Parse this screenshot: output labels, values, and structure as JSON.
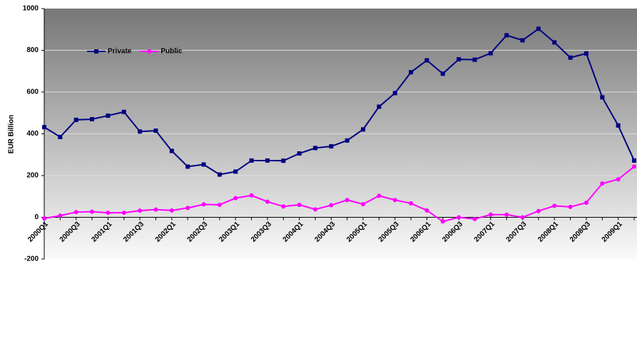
{
  "chart_data": {
    "type": "line",
    "y_label": "EUR Billion",
    "categories": [
      "2000Q1",
      null,
      "2000Q3",
      null,
      "2001Q1",
      null,
      "2001Q3",
      null,
      "2002Q1",
      null,
      "2002Q3",
      null,
      "2003Q1",
      null,
      "2003Q3",
      null,
      "2004Q1",
      null,
      "2004Q3",
      null,
      "2005Q1",
      null,
      "2005Q3",
      null,
      "2006Q1",
      null,
      "2006Q3",
      null,
      "2007Q1",
      null,
      "2007Q3",
      null,
      "2008Q1",
      null,
      "2008Q3",
      null,
      "2009Q1",
      null
    ],
    "series": [
      {
        "name": "Private",
        "color": "#000080",
        "marker": "square",
        "values": [
          432,
          385,
          467,
          470,
          487,
          505,
          411,
          415,
          318,
          243,
          253,
          205,
          219,
          272,
          272,
          271,
          306,
          332,
          340,
          368,
          421,
          530,
          595,
          695,
          752,
          688,
          757,
          755,
          786,
          872,
          848,
          903,
          838,
          765,
          785,
          575,
          440,
          272
        ]
      },
      {
        "name": "Public",
        "color": "#ff00ff",
        "marker": "circle",
        "values": [
          -5,
          8,
          25,
          27,
          22,
          22,
          32,
          37,
          33,
          45,
          62,
          60,
          92,
          105,
          75,
          52,
          60,
          38,
          58,
          83,
          63,
          103,
          83,
          67,
          33,
          -20,
          0,
          -8,
          13,
          13,
          0,
          30,
          55,
          50,
          70,
          162,
          182,
          243
        ]
      }
    ],
    "ylim": [
      -200,
      1000
    ],
    "yticks": [
      -200,
      0,
      200,
      400,
      600,
      800,
      1000
    ],
    "grid": true,
    "legend": "top-left"
  }
}
